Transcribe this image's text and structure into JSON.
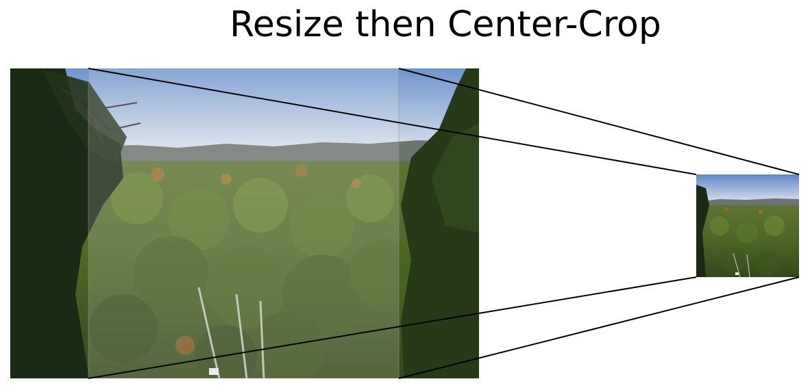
{
  "diagram": {
    "title": "Resize then Center-Crop"
  },
  "colors": {
    "sky_top": "#6f95cc",
    "sky_bottom": "#dde3ec",
    "hills": "#6e7470",
    "forest": "#4f6a2a",
    "forest_dark": "#1b2a14",
    "autumn": "#b0702a",
    "crop_overlay": "#ffffff",
    "line": "#000000"
  },
  "images": {
    "original": {
      "name": "forest-landscape-original"
    },
    "result": {
      "name": "forest-landscape-cropped-result"
    }
  }
}
